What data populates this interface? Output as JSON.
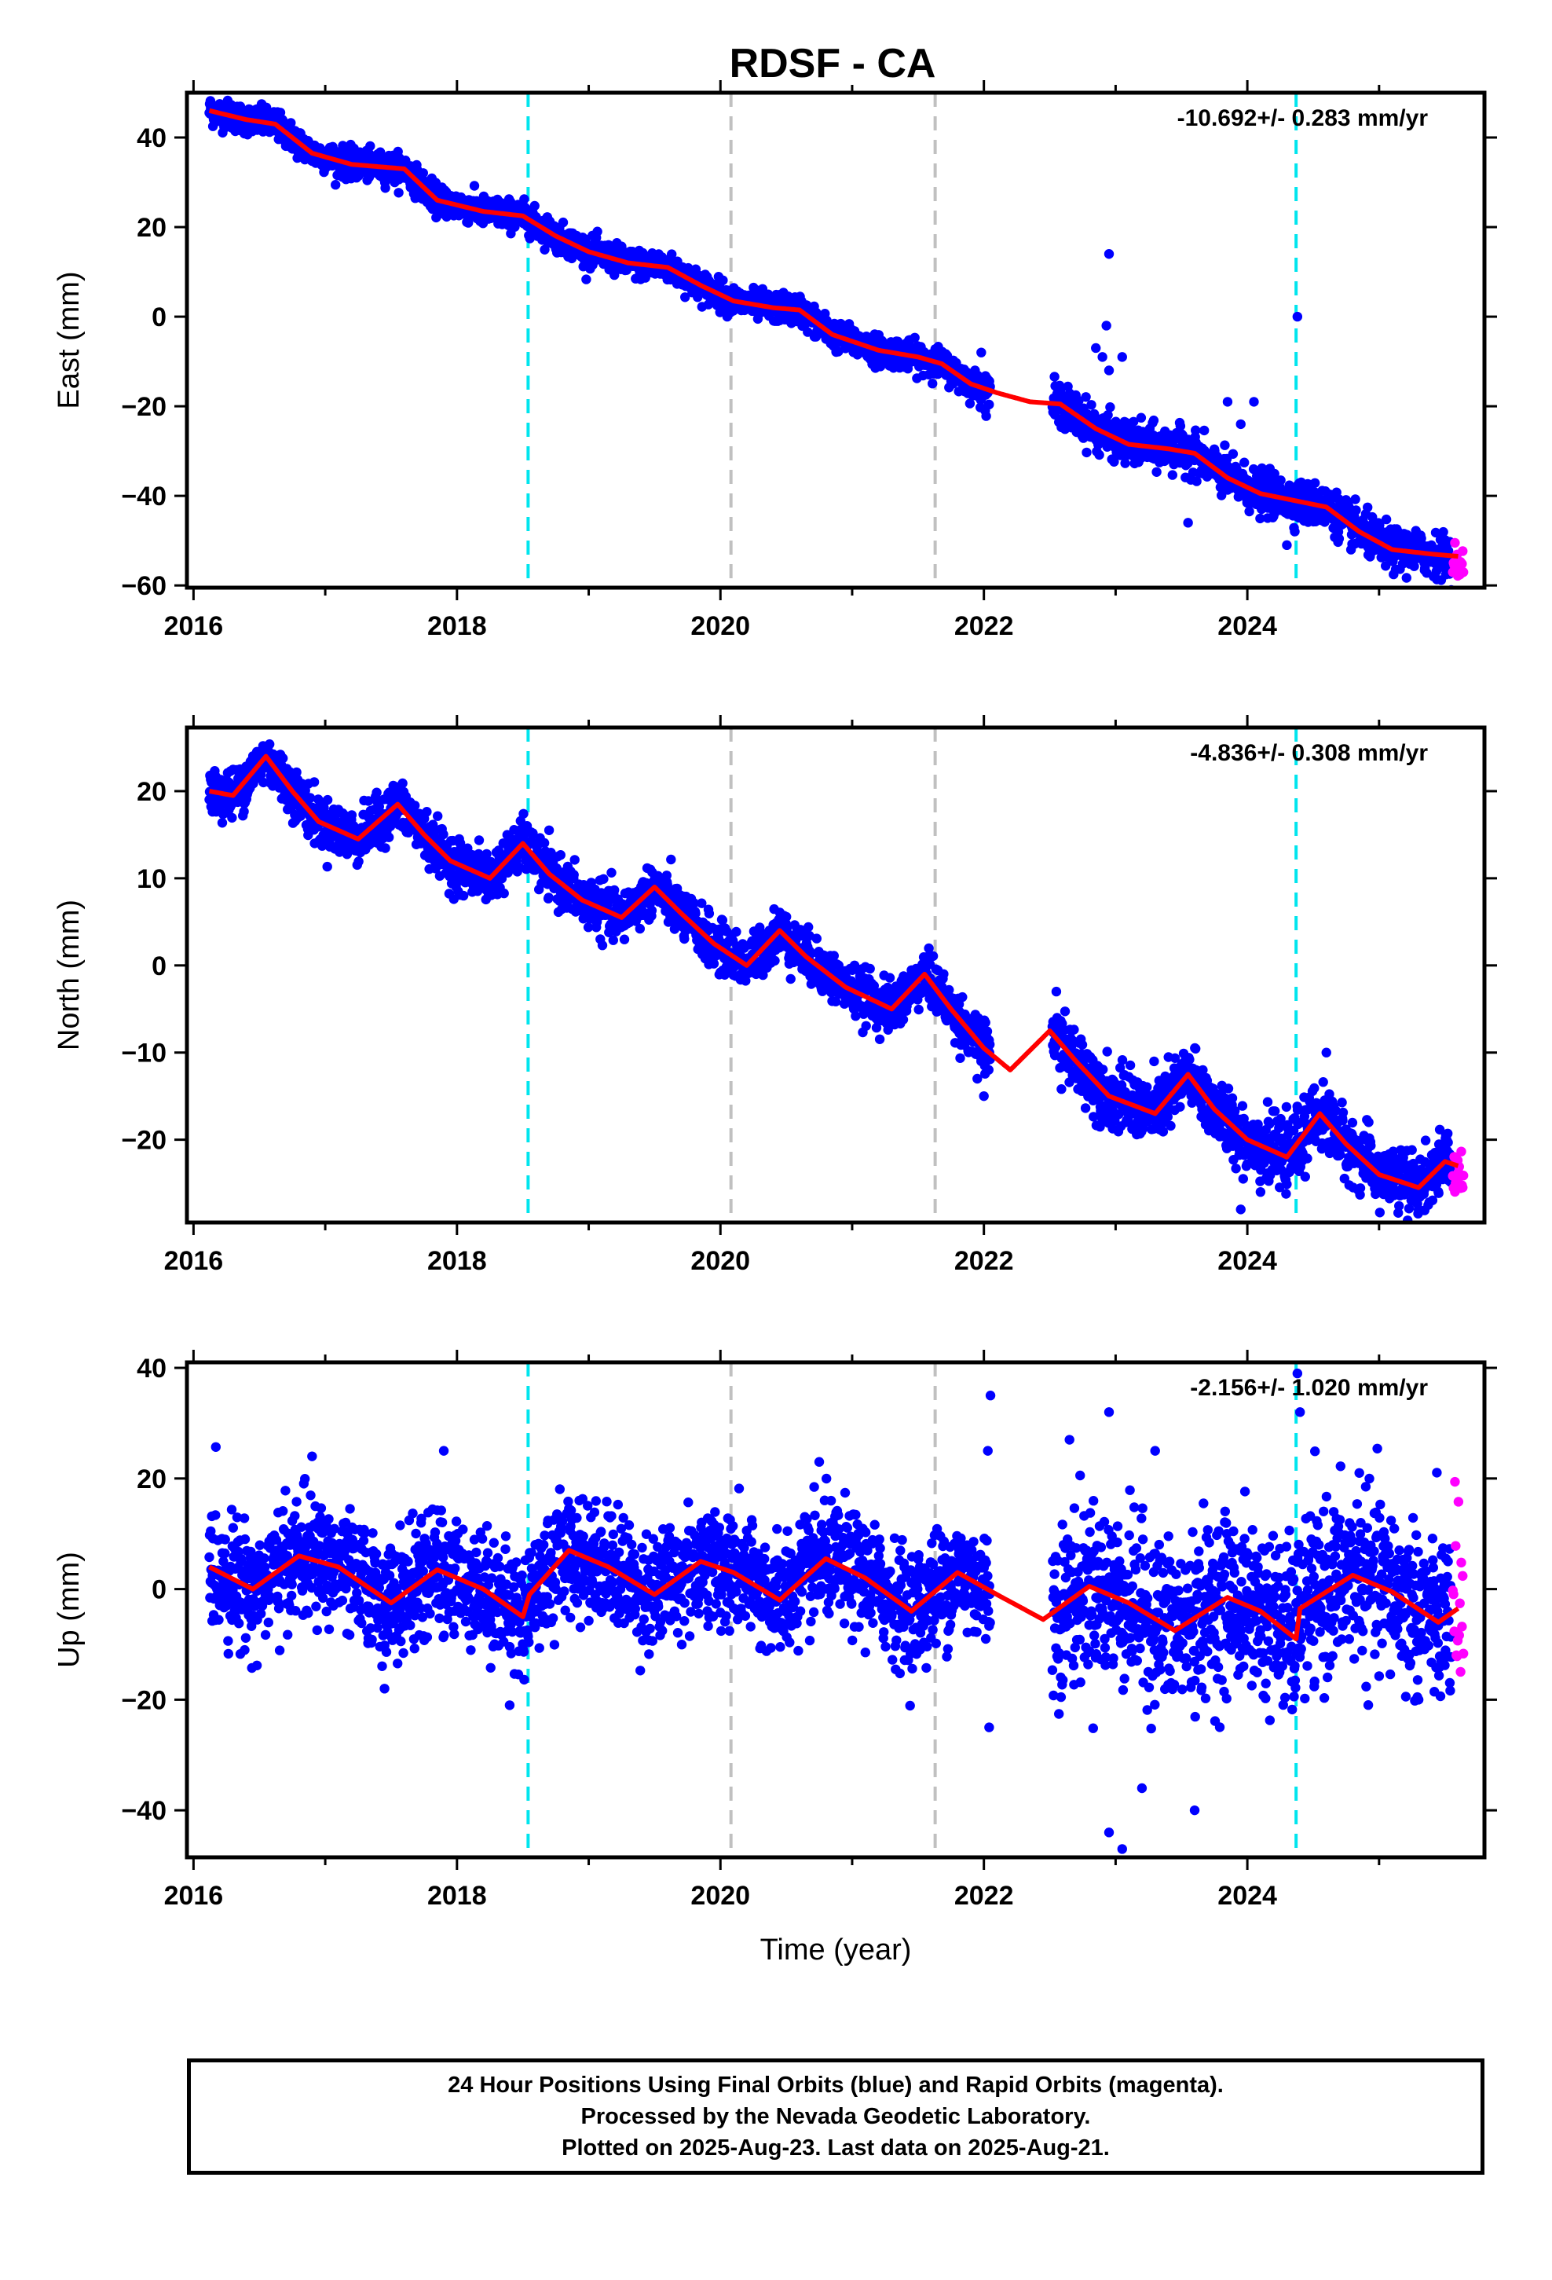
{
  "title": "RDSF - CA",
  "colors": {
    "final_orbits": "#0000ff",
    "rapid_orbits": "#ff00ff",
    "model_fit": "#ff0000",
    "equipment_change_lines": "#00e5ee",
    "other_event_lines": "#c0c0c0"
  },
  "chart_data": [
    {
      "type": "scatter",
      "name": "east",
      "ylabel": "East (mm)",
      "xlabel": "",
      "xlim": [
        2015.95,
        2025.8
      ],
      "ylim": [
        -60.5,
        50
      ],
      "xticks": [
        2016,
        2018,
        2020,
        2022,
        2024
      ],
      "yticks": [
        -60,
        -40,
        -20,
        0,
        20,
        40
      ],
      "rate_label": "-10.692+/- 0.283 mm/yr",
      "vlines_cyan": [
        2018.54,
        2024.37
      ],
      "vlines_gray": [
        2020.08,
        2021.63
      ],
      "fit_curve": [
        [
          2016.12,
          46
        ],
        [
          2016.4,
          44
        ],
        [
          2016.62,
          43
        ],
        [
          2016.9,
          36.5
        ],
        [
          2017.2,
          34
        ],
        [
          2017.6,
          33
        ],
        [
          2017.85,
          26
        ],
        [
          2018.2,
          23.5
        ],
        [
          2018.5,
          22.5
        ],
        [
          2018.75,
          18
        ],
        [
          2019.0,
          14.5
        ],
        [
          2019.3,
          12
        ],
        [
          2019.6,
          11
        ],
        [
          2019.85,
          7
        ],
        [
          2020.1,
          3.5
        ],
        [
          2020.4,
          2
        ],
        [
          2020.6,
          1.5
        ],
        [
          2020.85,
          -4
        ],
        [
          2021.2,
          -7.5
        ],
        [
          2021.5,
          -9
        ],
        [
          2021.68,
          -10.5
        ],
        [
          2021.9,
          -15
        ],
        [
          2022.1,
          -17
        ],
        [
          2022.35,
          -19
        ],
        [
          2022.58,
          -19.5
        ],
        [
          2022.85,
          -25
        ],
        [
          2023.1,
          -28.5
        ],
        [
          2023.4,
          -29.5
        ],
        [
          2023.6,
          -30.5
        ],
        [
          2023.85,
          -36
        ],
        [
          2024.1,
          -39.5
        ],
        [
          2024.35,
          -41
        ],
        [
          2024.6,
          -42.5
        ],
        [
          2024.85,
          -48
        ],
        [
          2025.1,
          -52
        ],
        [
          2025.4,
          -53
        ],
        [
          2025.6,
          -53.5
        ]
      ],
      "segments": [
        {
          "x0": 2016.12,
          "x1": 2022.05,
          "scatter": 1.6,
          "outliers": [
            [
              2021.98,
              -8
            ],
            [
              2022.01,
              -21
            ]
          ]
        },
        {
          "x0": 2022.52,
          "x1": 2025.55,
          "scatter": 2.3,
          "outliers": [
            [
              2022.95,
              14
            ],
            [
              2022.93,
              -2
            ],
            [
              2022.9,
              -9
            ],
            [
              2023.05,
              -9
            ],
            [
              2022.85,
              -7
            ],
            [
              2022.95,
              -12
            ],
            [
              2023.55,
              -46
            ],
            [
              2023.95,
              -24
            ],
            [
              2023.85,
              -19
            ],
            [
              2024.05,
              -19
            ],
            [
              2024.38,
              0
            ],
            [
              2024.3,
              -51
            ]
          ]
        }
      ],
      "rapid": {
        "x0": 2025.56,
        "x1": 2025.64,
        "ymin": -58,
        "ymax": -50
      }
    },
    {
      "type": "scatter",
      "name": "north",
      "ylabel": "North (mm)",
      "xlabel": "",
      "xlim": [
        2015.95,
        2025.8
      ],
      "ylim": [
        -29.5,
        27.3
      ],
      "xticks": [
        2016,
        2018,
        2020,
        2022,
        2024
      ],
      "yticks": [
        -20,
        -10,
        0,
        10,
        20
      ],
      "rate_label": "-4.836+/- 0.308 mm/yr",
      "vlines_cyan": [
        2018.54,
        2024.37
      ],
      "vlines_gray": [
        2020.08,
        2021.63
      ],
      "fit_curve": [
        [
          2016.12,
          20
        ],
        [
          2016.3,
          19.5
        ],
        [
          2016.55,
          24
        ],
        [
          2016.75,
          20
        ],
        [
          2016.95,
          16.5
        ],
        [
          2017.25,
          14.5
        ],
        [
          2017.55,
          18.5
        ],
        [
          2017.75,
          15
        ],
        [
          2017.95,
          12
        ],
        [
          2018.25,
          10
        ],
        [
          2018.5,
          14
        ],
        [
          2018.7,
          10.5
        ],
        [
          2018.95,
          7.5
        ],
        [
          2019.25,
          5.5
        ],
        [
          2019.5,
          9
        ],
        [
          2019.7,
          6
        ],
        [
          2019.95,
          2.5
        ],
        [
          2020.2,
          0
        ],
        [
          2020.45,
          4
        ],
        [
          2020.65,
          1
        ],
        [
          2020.95,
          -2.5
        ],
        [
          2021.3,
          -5
        ],
        [
          2021.55,
          -1
        ],
        [
          2021.75,
          -5
        ],
        [
          2022.0,
          -9.5
        ],
        [
          2022.2,
          -12
        ],
        [
          2022.5,
          -7.5
        ],
        [
          2022.7,
          -11
        ],
        [
          2022.95,
          -15
        ],
        [
          2023.3,
          -17
        ],
        [
          2023.55,
          -12.5
        ],
        [
          2023.75,
          -16.5
        ],
        [
          2024.0,
          -20
        ],
        [
          2024.3,
          -22
        ],
        [
          2024.55,
          -17
        ],
        [
          2024.75,
          -20.5
        ],
        [
          2025.0,
          -24
        ],
        [
          2025.3,
          -25.5
        ],
        [
          2025.5,
          -22.5
        ],
        [
          2025.6,
          -23
        ]
      ],
      "segments": [
        {
          "x0": 2016.12,
          "x1": 2022.05,
          "scatter": 1.4,
          "outliers": [
            [
              2018.05,
              8
            ],
            [
              2021.95,
              -13
            ],
            [
              2022.0,
              -15
            ]
          ]
        },
        {
          "x0": 2022.52,
          "x1": 2025.55,
          "scatter": 1.8,
          "outliers": [
            [
              2022.55,
              -3
            ],
            [
              2023.95,
              -28
            ],
            [
              2024.1,
              -26
            ],
            [
              2024.6,
              -10
            ],
            [
              2025.3,
              -28
            ]
          ]
        }
      ],
      "rapid": {
        "x0": 2025.56,
        "x1": 2025.64,
        "ymin": -26,
        "ymax": -21
      }
    },
    {
      "type": "scatter",
      "name": "up",
      "ylabel": "Up (mm)",
      "xlabel": "Time (year)",
      "xlim": [
        2015.95,
        2025.8
      ],
      "ylim": [
        -48.5,
        41
      ],
      "xticks": [
        2016,
        2018,
        2020,
        2022,
        2024
      ],
      "yticks": [
        -40,
        -20,
        0,
        20,
        40
      ],
      "rate_label": "-2.156+/- 1.020 mm/yr",
      "vlines_cyan": [
        2018.54,
        2024.37
      ],
      "vlines_gray": [
        2020.08,
        2021.63
      ],
      "fit_curve": [
        [
          2016.12,
          4
        ],
        [
          2016.45,
          0
        ],
        [
          2016.8,
          6
        ],
        [
          2017.1,
          4
        ],
        [
          2017.5,
          -2.5
        ],
        [
          2017.85,
          3.5
        ],
        [
          2018.2,
          0
        ],
        [
          2018.5,
          -5
        ],
        [
          2018.55,
          -1
        ],
        [
          2018.85,
          7
        ],
        [
          2019.15,
          4
        ],
        [
          2019.5,
          -1
        ],
        [
          2019.85,
          5
        ],
        [
          2020.1,
          3
        ],
        [
          2020.45,
          -2
        ],
        [
          2020.8,
          5.5
        ],
        [
          2021.1,
          2
        ],
        [
          2021.45,
          -4
        ],
        [
          2021.8,
          3
        ],
        [
          2022.1,
          -1
        ],
        [
          2022.45,
          -5.5
        ],
        [
          2022.8,
          0.5
        ],
        [
          2023.1,
          -2.5
        ],
        [
          2023.45,
          -7.5
        ],
        [
          2023.85,
          -1.5
        ],
        [
          2024.1,
          -4
        ],
        [
          2024.37,
          -9
        ],
        [
          2024.4,
          -3.5
        ],
        [
          2024.8,
          2.5
        ],
        [
          2025.1,
          -0.5
        ],
        [
          2025.45,
          -6
        ],
        [
          2025.6,
          -3.5
        ]
      ],
      "segments": [
        {
          "x0": 2016.12,
          "x1": 2022.05,
          "scatter": 5.2,
          "outliers": [
            [
              2017.45,
              -18
            ],
            [
              2018.4,
              -21
            ],
            [
              2022.05,
              35
            ],
            [
              2022.03,
              25
            ],
            [
              2022.04,
              -25
            ],
            [
              2020.75,
              23
            ],
            [
              2016.9,
              24
            ],
            [
              2017.9,
              25
            ]
          ]
        },
        {
          "x0": 2022.52,
          "x1": 2025.55,
          "scatter": 7.5,
          "outliers": [
            [
              2022.95,
              -44
            ],
            [
              2023.05,
              -47
            ],
            [
              2023.2,
              -36
            ],
            [
              2023.6,
              -40
            ],
            [
              2022.95,
              32
            ],
            [
              2023.3,
              25
            ],
            [
              2024.38,
              39
            ],
            [
              2024.4,
              32
            ],
            [
              2024.85,
              21
            ],
            [
              2025.3,
              -20
            ],
            [
              2022.65,
              27
            ]
          ]
        }
      ],
      "rapid": {
        "x0": 2025.56,
        "x1": 2025.64,
        "ymin": -15,
        "ymax": 20
      }
    }
  ],
  "footer": {
    "line1": "24 Hour Positions Using Final Orbits (blue) and Rapid Orbits (magenta).",
    "line2": "Processed by the Nevada Geodetic Laboratory.",
    "line3": "Plotted on 2025-Aug-23. Last data on 2025-Aug-21."
  }
}
